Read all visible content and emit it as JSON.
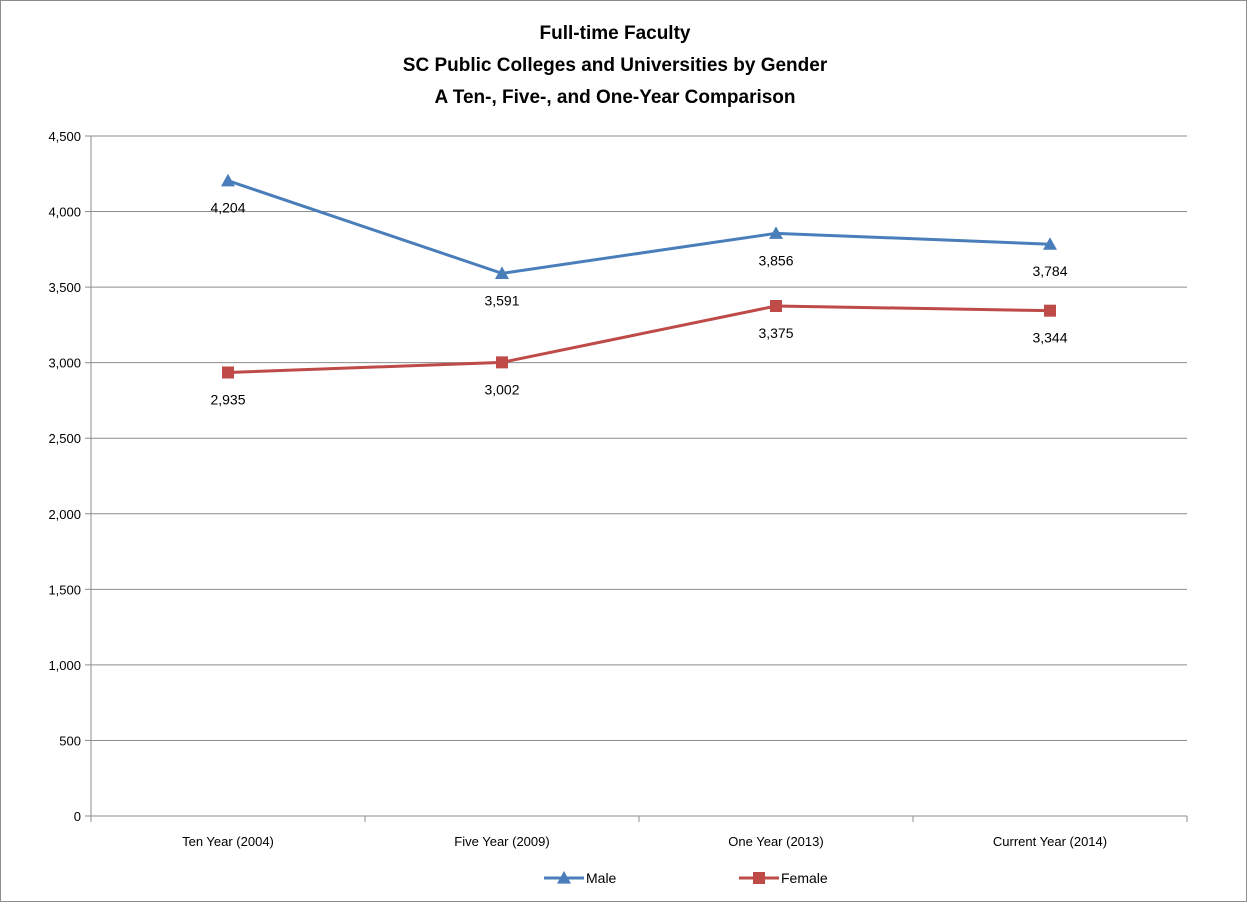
{
  "chart_data": {
    "type": "line",
    "title": [
      "Full-time Faculty",
      "SC Public Colleges and Universities by Gender",
      "A Ten-, Five-, and One-Year Comparison"
    ],
    "categories": [
      "Ten Year (2004)",
      "Five Year (2009)",
      "One Year (2013)",
      "Current Year (2014)"
    ],
    "ylim": [
      0,
      4500
    ],
    "yticks": [
      0,
      500,
      1000,
      1500,
      2000,
      2500,
      3000,
      3500,
      4000,
      4500
    ],
    "ytick_labels": [
      "0",
      "500",
      "1,000",
      "1,500",
      "2,000",
      "2,500",
      "3,000",
      "3,500",
      "4,000",
      "4,500"
    ],
    "grid": true,
    "legend_position": "bottom",
    "series": [
      {
        "name": "Male",
        "values": [
          4204,
          3591,
          3856,
          3784
        ],
        "labels": [
          "4,204",
          "3,591",
          "3,856",
          "3,784"
        ],
        "color": "#4a7ebb",
        "marker": "triangle"
      },
      {
        "name": "Female",
        "values": [
          2935,
          3002,
          3375,
          3344
        ],
        "labels": [
          "2,935",
          "3,002",
          "3,375",
          "3,344"
        ],
        "color": "#be4b48",
        "marker": "square"
      }
    ]
  }
}
